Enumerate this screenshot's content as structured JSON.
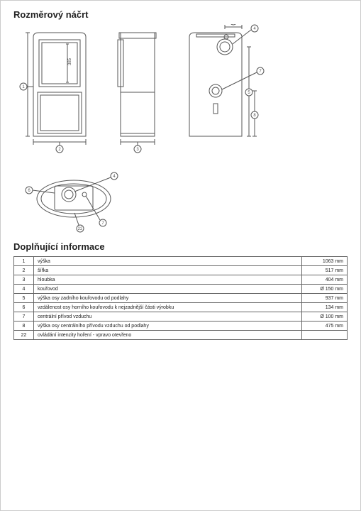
{
  "drawing": {
    "title": "Rozměrový náčrt",
    "callouts": [
      "1",
      "2",
      "3",
      "4",
      "5",
      "6",
      "7",
      "8",
      "22"
    ],
    "dim_label": "385",
    "stroke": "#555555",
    "fill": "#ffffff",
    "line_width": 1
  },
  "info": {
    "title": "Doplňující informace",
    "rows": [
      {
        "num": "1",
        "label": "výška",
        "value": "1063 mm"
      },
      {
        "num": "2",
        "label": "šířka",
        "value": "517 mm"
      },
      {
        "num": "3",
        "label": "hloubka",
        "value": "404 mm"
      },
      {
        "num": "4",
        "label": "kouřovod",
        "value": "Ø 150 mm"
      },
      {
        "num": "5",
        "label": "výška osy zadního kouřovodu od podlahy",
        "value": "937 mm"
      },
      {
        "num": "6",
        "label": "vzdálenost osy horního kouřovodu k nejzadnější části výrobku",
        "value": "134 mm"
      },
      {
        "num": "7",
        "label": "centrální přívod vzduchu",
        "value": "Ø 100 mm"
      },
      {
        "num": "8",
        "label": "výška osy centrálního přívodu vzduchu od podlahy",
        "value": "475 mm"
      },
      {
        "num": "22",
        "label": "ovládání intenzity hoření - vpravo otevřeno",
        "value": ""
      }
    ]
  }
}
